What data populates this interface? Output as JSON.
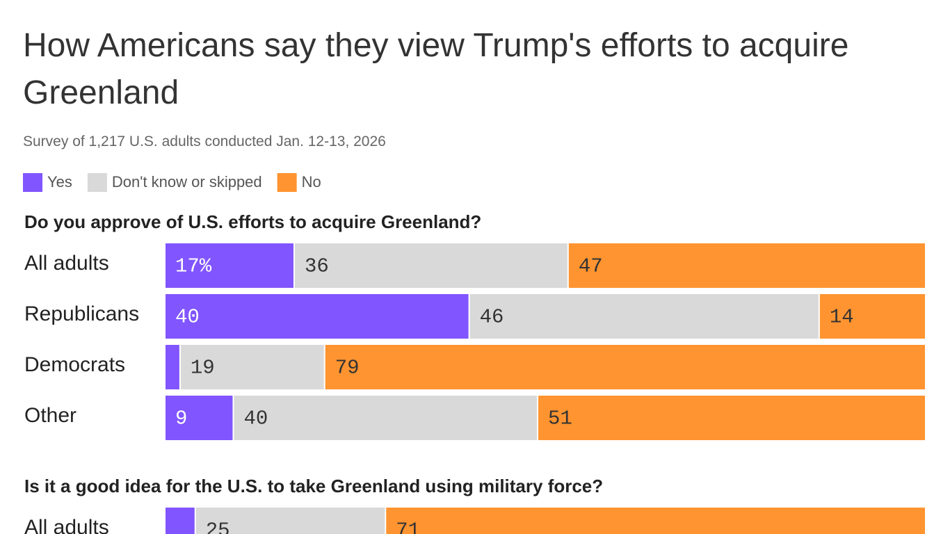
{
  "title": "How Americans say they view Trump's efforts to acquire Greenland",
  "subtitle": "Survey of 1,217 U.S. adults conducted Jan. 12-13, 2026",
  "chart_data": [
    {
      "type": "bar",
      "orientation": "horizontal",
      "stacked": true,
      "title": "Do you approve of U.S. efforts to acquire Greenland?",
      "categories": [
        "All adults",
        "Republicans",
        "Democrats",
        "Other"
      ],
      "xlim": [
        0,
        100
      ],
      "series": [
        {
          "name": "Yes",
          "color": "#8155ff",
          "values": [
            17,
            40,
            2,
            9
          ],
          "value_labels": [
            "17%",
            "40",
            null,
            "9"
          ]
        },
        {
          "name": "Don't know or skipped",
          "color": "#d9d9d9",
          "values": [
            36,
            46,
            19,
            40
          ]
        },
        {
          "name": "No",
          "color": "#ff9430",
          "values": [
            47,
            14,
            79,
            51
          ]
        }
      ]
    },
    {
      "type": "bar",
      "orientation": "horizontal",
      "stacked": true,
      "title": "Is it a good idea for the U.S. to take Greenland using military force?",
      "categories": [
        "All adults"
      ],
      "xlim": [
        0,
        100
      ],
      "series": [
        {
          "color": "#8155ff",
          "values": [
            4
          ],
          "value_labels": [
            null
          ]
        },
        {
          "color": "#d9d9d9",
          "values": [
            25
          ]
        },
        {
          "color": "#ff9430",
          "values": [
            71
          ]
        }
      ]
    }
  ]
}
